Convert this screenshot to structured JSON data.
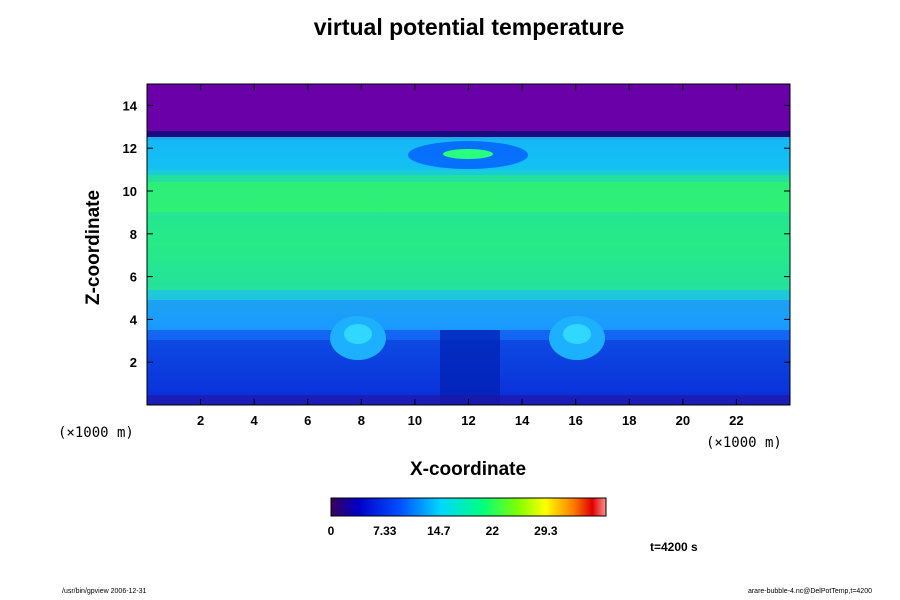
{
  "chart_data": {
    "type": "heatmap",
    "title": "virtual potential temperature",
    "xlabel": "X-coordinate",
    "ylabel": "Z-coordinate",
    "x_unit": "(×1000 m)",
    "y_unit": "(×1000 m)",
    "xlim": [
      0,
      24
    ],
    "ylim": [
      0,
      15
    ],
    "x_ticks": [
      "2",
      "4",
      "6",
      "8",
      "10",
      "12",
      "14",
      "16",
      "18",
      "20",
      "22"
    ],
    "y_ticks": [
      "2",
      "4",
      "6",
      "8",
      "10",
      "12",
      "14"
    ],
    "colorbar": {
      "min": 0,
      "max": 37.5,
      "tick_labels": [
        "0",
        "7.33",
        "14.7",
        "22",
        "29.3"
      ],
      "colors": [
        "#3b005a",
        "#0000c8",
        "#0050ff",
        "#00d8ff",
        "#00ff80",
        "#80ff00",
        "#ffff00",
        "#ff8000",
        "#e00000",
        "#ff9090"
      ]
    },
    "annotation": "t=4200 s"
  },
  "footer": {
    "left": "/usr/bin/gpview 2006-12-31",
    "right": "arare-bubble-4.nc@DelPotTemp,t=4200"
  }
}
